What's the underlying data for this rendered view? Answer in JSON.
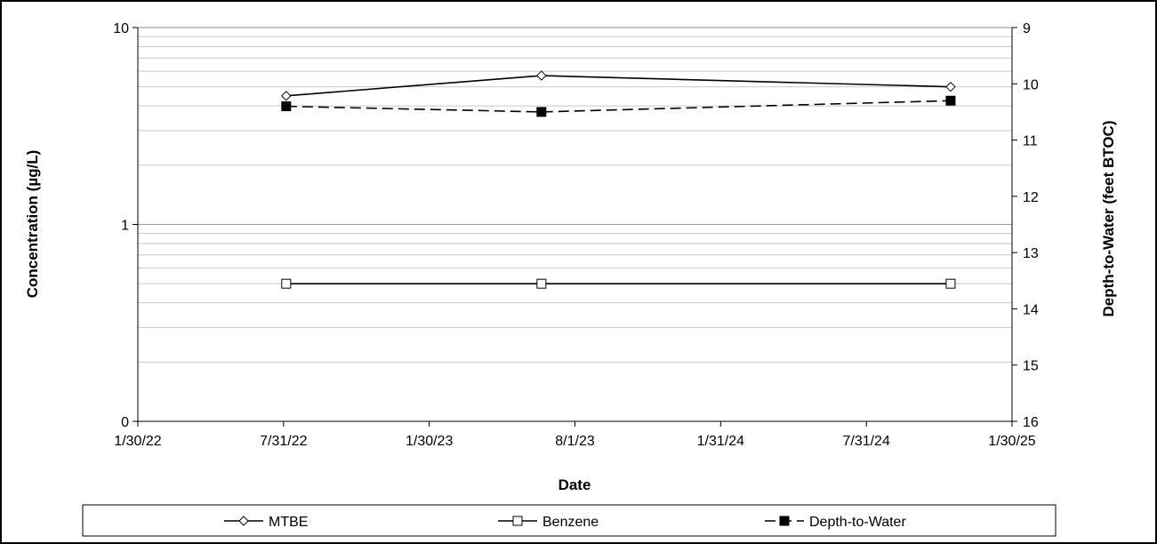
{
  "chart_data": {
    "type": "line",
    "title": "",
    "xlabel": "Date",
    "ylabel": "Concentration (µg/L)",
    "y2label": "Depth-to-Water (feet BTOC)",
    "x_ticks": [
      "1/30/22",
      "7/31/22",
      "1/30/23",
      "8/1/23",
      "1/31/24",
      "7/31/24",
      "1/30/25"
    ],
    "x_range": [
      "2022-01-30",
      "2025-01-30"
    ],
    "y_scale": "log",
    "y_ticks": [
      "0",
      "1",
      "10"
    ],
    "y2_ticks": [
      "9",
      "10",
      "11",
      "12",
      "13",
      "14",
      "15",
      "16"
    ],
    "y2lim": [
      9,
      16
    ],
    "y2_reversed": true,
    "grid": true,
    "legend_position": "bottom",
    "series": [
      {
        "name": "MTBE",
        "axis": "left",
        "marker": "open-diamond",
        "line": "solid",
        "color": "#000000",
        "points": [
          {
            "date": "2022-08-04",
            "value": 4.5
          },
          {
            "date": "2023-06-20",
            "value": 5.7
          },
          {
            "date": "2024-11-14",
            "value": 5.0
          }
        ]
      },
      {
        "name": "Benzene",
        "axis": "left",
        "marker": "open-square",
        "line": "solid",
        "color": "#000000",
        "points": [
          {
            "date": "2022-08-04",
            "value": 0.5
          },
          {
            "date": "2023-06-20",
            "value": 0.5
          },
          {
            "date": "2024-11-14",
            "value": 0.5
          }
        ]
      },
      {
        "name": "Depth-to-Water",
        "axis": "right",
        "marker": "filled-square",
        "line": "dashed",
        "color": "#000000",
        "points": [
          {
            "date": "2022-08-04",
            "value": 10.4
          },
          {
            "date": "2023-06-20",
            "value": 10.5
          },
          {
            "date": "2024-11-14",
            "value": 10.3
          }
        ]
      }
    ]
  }
}
